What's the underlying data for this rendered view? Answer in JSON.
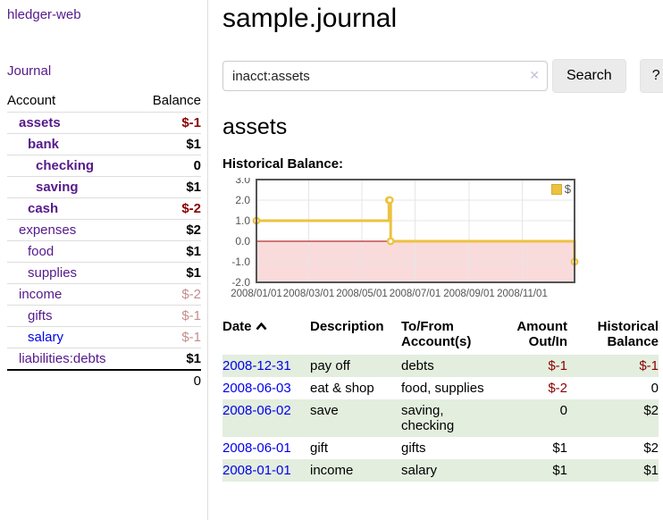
{
  "sidebar": {
    "brand": "hledger-web",
    "journal_link": "Journal",
    "accounts": {
      "col_account": "Account",
      "col_balance": "Balance",
      "rows": [
        {
          "name": "assets",
          "balance": "$-1"
        },
        {
          "name": "bank",
          "balance": "$1"
        },
        {
          "name": "checking",
          "balance": "0"
        },
        {
          "name": "saving",
          "balance": "$1"
        },
        {
          "name": "cash",
          "balance": "$-2"
        },
        {
          "name": "expenses",
          "balance": "$2"
        },
        {
          "name": "food",
          "balance": "$1"
        },
        {
          "name": "supplies",
          "balance": "$1"
        },
        {
          "name": "income",
          "balance": "$-2"
        },
        {
          "name": "gifts",
          "balance": "$-1"
        },
        {
          "name": "salary",
          "balance": "$-1"
        },
        {
          "name": "liabilities:debts",
          "balance": "$1"
        }
      ],
      "total": "0"
    }
  },
  "header": {
    "title": "sample.journal"
  },
  "search": {
    "value": "inacct:assets",
    "clear_icon": "✕",
    "search_button": "Search",
    "help_button": "?"
  },
  "account_view": {
    "title": "assets",
    "chart_heading": "Historical Balance:"
  },
  "chart_data": {
    "type": "line",
    "step": true,
    "title": "Historical Balance",
    "series": [
      {
        "name": "$",
        "color": "#EDC240",
        "points": [
          {
            "date": "2008/01/01",
            "day": 0,
            "value": 1
          },
          {
            "date": "2008/06/01",
            "day": 152,
            "value": 2
          },
          {
            "date": "2008/06/02",
            "day": 153,
            "value": 2
          },
          {
            "date": "2008/06/03",
            "day": 154,
            "value": 0
          },
          {
            "date": "2008/12/31",
            "day": 365,
            "value": -1
          }
        ]
      }
    ],
    "x_range_days": [
      0,
      365
    ],
    "x_ticks": [
      {
        "day": 0,
        "label": "2008/01/01"
      },
      {
        "day": 60,
        "label": "2008/03/01"
      },
      {
        "day": 121,
        "label": "2008/05/01"
      },
      {
        "day": 182,
        "label": "2008/07/01"
      },
      {
        "day": 244,
        "label": "2008/09/01"
      },
      {
        "day": 305,
        "label": "2008/11/01"
      }
    ],
    "y_range": [
      -2,
      3
    ],
    "y_ticks": [
      {
        "value": 3,
        "label": "3.0"
      },
      {
        "value": 2,
        "label": "2.0"
      },
      {
        "value": 1,
        "label": "1.0"
      },
      {
        "value": 0,
        "label": "0.0"
      },
      {
        "value": -1,
        "label": "-1.0"
      },
      {
        "value": -2,
        "label": "-2.0"
      }
    ],
    "legend": {
      "label": "$",
      "position": "top-right"
    },
    "grid": true,
    "negative_region_color": "#fadbdb",
    "zero_line_color": "#a40000",
    "axis_text_color": "#545454",
    "border_color": "#545454",
    "gridline_color": "#e6e6e6"
  },
  "register": {
    "columns": {
      "date": "Date",
      "description": "Description",
      "accounts": "To/From Account(s)",
      "amount": "Amount Out/In",
      "balance": "Historical Balance"
    },
    "sort_icon": "chevron-up",
    "rows": [
      {
        "date": "2008-12-31",
        "description": "pay off",
        "accounts": "debts",
        "amount": "$-1",
        "balance": "$-1"
      },
      {
        "date": "2008-06-03",
        "description": "eat & shop",
        "accounts": "food, supplies",
        "amount": "$-2",
        "balance": "0"
      },
      {
        "date": "2008-06-02",
        "description": "save",
        "accounts": "saving, checking",
        "amount": "0",
        "balance": "$2"
      },
      {
        "date": "2008-06-01",
        "description": "gift",
        "accounts": "gifts",
        "amount": "$1",
        "balance": "$2"
      },
      {
        "date": "2008-01-01",
        "description": "income",
        "accounts": "salary",
        "amount": "$1",
        "balance": "$1"
      }
    ]
  },
  "colors": {
    "link_purple": "#551A8B",
    "link_blue": "#0000EE",
    "negative": "#8b0000",
    "negative_dim": "#c48e8e",
    "row_stripe_green": "#e3eede",
    "series_gold": "#EDC240"
  }
}
